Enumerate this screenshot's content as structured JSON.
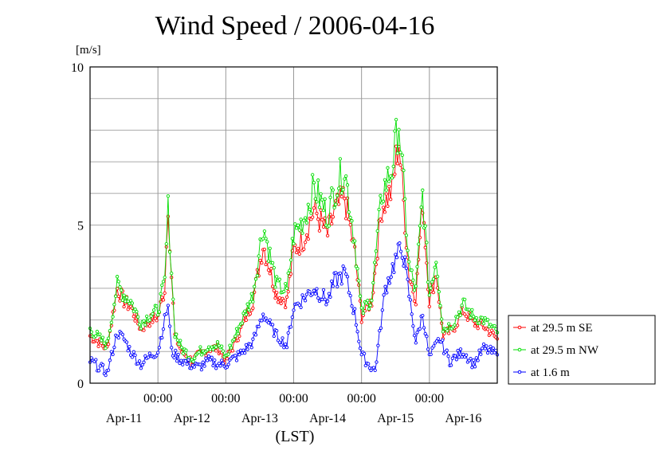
{
  "chart_data": {
    "type": "line",
    "title": "Wind Speed / 2006-04-16",
    "ylabel": "[m/s]",
    "xlabel": "(LST)",
    "ylim": [
      0,
      10
    ],
    "xlim": [
      0,
      6
    ],
    "yticks": [
      0,
      5,
      10
    ],
    "xtick_time_labels": [
      "00:00",
      "00:00",
      "00:00",
      "00:00",
      "00:00"
    ],
    "xtick_time_positions": [
      1,
      2,
      3,
      4,
      5
    ],
    "xtick_date_labels": [
      "Apr-11",
      "Apr-12",
      "Apr-13",
      "Apr-14",
      "Apr-15",
      "Apr-16"
    ],
    "xtick_date_positions": [
      0.5,
      1.5,
      2.5,
      3.5,
      4.5,
      5.5
    ],
    "grid": true,
    "legend_placement": "right",
    "x_units": "days after 2006-04-10 00:00 LST",
    "series": [
      {
        "name": "at 29.5 m SE",
        "color": "#ff0000",
        "x": [
          0.0,
          0.25,
          0.4,
          0.5,
          0.6,
          0.75,
          0.9,
          1.0,
          1.1,
          1.15,
          1.2,
          1.25,
          1.35,
          1.5,
          1.75,
          1.9,
          2.0,
          2.2,
          2.4,
          2.55,
          2.75,
          2.9,
          3.0,
          3.15,
          3.3,
          3.5,
          3.6,
          3.75,
          3.9,
          4.0,
          4.05,
          4.15,
          4.3,
          4.45,
          4.55,
          4.6,
          4.7,
          4.8,
          4.9,
          5.0,
          5.1,
          5.2,
          5.35,
          5.5,
          5.65,
          5.8,
          6.0
        ],
        "values": [
          1.5,
          1.1,
          3.0,
          2.6,
          2.4,
          1.7,
          2.0,
          2.1,
          3.0,
          5.7,
          3.4,
          1.5,
          1.0,
          0.7,
          1.1,
          1.1,
          0.7,
          1.6,
          2.6,
          4.4,
          2.8,
          2.6,
          4.2,
          4.6,
          5.5,
          4.7,
          5.4,
          5.9,
          4.1,
          2.1,
          2.3,
          2.6,
          5.6,
          6.1,
          7.7,
          6.3,
          3.4,
          2.7,
          5.8,
          2.6,
          3.5,
          1.5,
          1.7,
          2.3,
          1.9,
          1.8,
          1.4
        ]
      },
      {
        "name": "at 29.5 m NW",
        "color": "#00dd00",
        "x": [
          0.0,
          0.25,
          0.4,
          0.5,
          0.6,
          0.75,
          0.9,
          1.0,
          1.1,
          1.15,
          1.2,
          1.25,
          1.35,
          1.5,
          1.75,
          1.9,
          2.0,
          2.2,
          2.4,
          2.55,
          2.75,
          2.9,
          3.0,
          3.15,
          3.3,
          3.5,
          3.6,
          3.75,
          3.9,
          4.0,
          4.05,
          4.15,
          4.3,
          4.45,
          4.55,
          4.6,
          4.7,
          4.8,
          4.9,
          5.0,
          5.1,
          5.2,
          5.35,
          5.5,
          5.65,
          5.8,
          6.0
        ],
        "values": [
          1.7,
          1.2,
          3.1,
          2.8,
          2.6,
          1.9,
          2.2,
          2.3,
          3.2,
          5.5,
          3.6,
          1.6,
          1.1,
          0.8,
          1.2,
          1.2,
          0.8,
          1.8,
          2.8,
          5.0,
          3.1,
          2.9,
          4.7,
          5.2,
          6.2,
          5.3,
          6.1,
          6.8,
          4.5,
          2.2,
          2.4,
          2.7,
          6.0,
          6.8,
          8.3,
          6.8,
          3.7,
          2.9,
          6.0,
          2.8,
          4.0,
          1.7,
          1.9,
          2.5,
          2.1,
          2.0,
          1.6
        ]
      },
      {
        "name": "at 1.6 m",
        "color": "#0000ff",
        "x": [
          0.0,
          0.15,
          0.25,
          0.4,
          0.5,
          0.6,
          0.75,
          0.9,
          1.0,
          1.1,
          1.15,
          1.2,
          1.3,
          1.45,
          1.6,
          1.75,
          1.9,
          2.0,
          2.2,
          2.4,
          2.55,
          2.75,
          2.9,
          3.0,
          3.15,
          3.3,
          3.5,
          3.6,
          3.75,
          3.9,
          4.0,
          4.1,
          4.2,
          4.35,
          4.5,
          4.6,
          4.7,
          4.8,
          4.9,
          5.0,
          5.15,
          5.3,
          5.5,
          5.65,
          5.8,
          6.0
        ],
        "values": [
          0.7,
          0.5,
          0.3,
          1.6,
          1.4,
          1.0,
          0.6,
          0.9,
          1.0,
          2.0,
          2.5,
          1.0,
          0.8,
          0.6,
          0.5,
          0.7,
          0.6,
          0.6,
          0.9,
          1.3,
          2.2,
          1.5,
          1.2,
          2.4,
          2.7,
          3.0,
          2.6,
          3.2,
          3.5,
          2.2,
          0.9,
          0.6,
          0.4,
          3.0,
          3.9,
          4.3,
          2.8,
          1.3,
          2.2,
          0.8,
          1.4,
          0.7,
          1.0,
          0.6,
          1.1,
          0.9
        ]
      }
    ]
  }
}
